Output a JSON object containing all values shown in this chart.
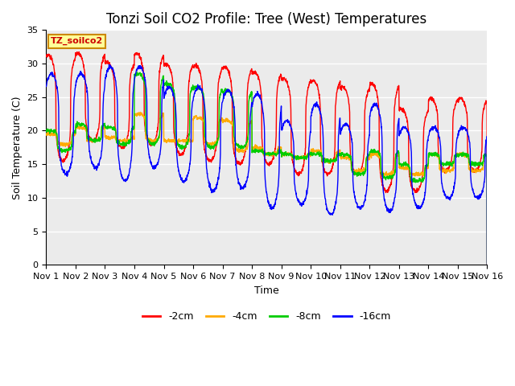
{
  "title": "Tonzi Soil CO2 Profile: Tree (West) Temperatures",
  "xlabel": "Time",
  "ylabel": "Soil Temperature (C)",
  "ylim": [
    0,
    35
  ],
  "yticks": [
    0,
    5,
    10,
    15,
    20,
    25,
    30,
    35
  ],
  "xlim": [
    0,
    15
  ],
  "xtick_labels": [
    "Nov 1",
    "Nov 2",
    "Nov 3",
    "Nov 4",
    "Nov 5",
    "Nov 6",
    "Nov 7",
    "Nov 8",
    "Nov 9",
    "Nov 10",
    "Nov 11",
    "Nov 12",
    "Nov 13",
    "Nov 14",
    "Nov 15",
    "Nov 16"
  ],
  "legend_label": "TZ_soilco2",
  "series_labels": [
    "-2cm",
    "-4cm",
    "-8cm",
    "-16cm"
  ],
  "series_colors": [
    "#ff0000",
    "#ffaa00",
    "#00cc00",
    "#0000ff"
  ],
  "plot_bg_color": "#ebebeb",
  "grid_color": "#ffffff",
  "title_fontsize": 12,
  "axis_fontsize": 9,
  "tick_fontsize": 8,
  "legend_box_facecolor": "#ffff99",
  "legend_box_edgecolor": "#cc8800",
  "peaks_red": [
    31.2,
    31.5,
    30.2,
    31.5,
    30.0,
    29.7,
    29.5,
    28.7,
    27.7,
    27.5,
    26.5,
    27.0,
    23.2,
    24.8
  ],
  "peaks_orange": [
    19.5,
    20.5,
    19.0,
    22.5,
    18.5,
    22.0,
    21.5,
    17.5,
    16.5,
    17.0,
    16.0,
    16.5,
    14.5,
    16.5
  ],
  "peaks_green": [
    20.0,
    21.0,
    20.5,
    28.5,
    27.0,
    26.5,
    26.0,
    17.0,
    16.5,
    16.5,
    16.5,
    17.0,
    15.0,
    16.5
  ],
  "peaks_blue": [
    28.5,
    28.5,
    29.5,
    29.5,
    26.5,
    26.5,
    26.0,
    25.5,
    21.5,
    24.0,
    21.0,
    24.0,
    20.5,
    20.5
  ],
  "troughs_red": [
    15.5,
    18.5,
    17.5,
    18.0,
    16.5,
    15.5,
    15.0,
    15.0,
    13.5,
    13.5,
    13.5,
    11.0,
    11.0,
    14.0
  ],
  "troughs_orange": [
    18.0,
    18.5,
    18.5,
    18.5,
    18.5,
    18.0,
    17.0,
    16.5,
    16.0,
    15.5,
    14.0,
    13.5,
    13.5,
    14.0
  ],
  "troughs_green": [
    17.0,
    18.5,
    18.0,
    18.0,
    17.5,
    17.5,
    17.5,
    16.5,
    16.0,
    15.5,
    13.5,
    13.0,
    12.5,
    15.0
  ],
  "troughs_blue": [
    13.5,
    14.5,
    12.5,
    14.5,
    12.5,
    11.0,
    11.5,
    8.5,
    9.0,
    7.5,
    8.5,
    8.0,
    8.5,
    10.0
  ]
}
